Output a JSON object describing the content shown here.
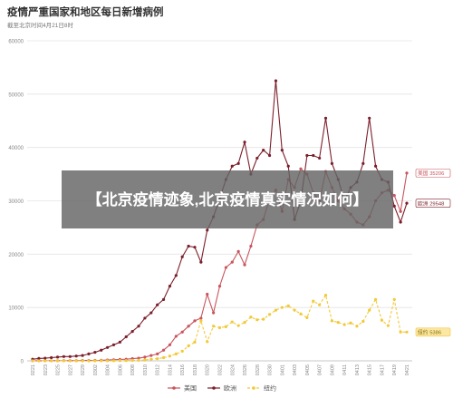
{
  "header": {
    "title": "疫情严重国家和地区每日新增病例",
    "subtitle": "截至北京时间4月21日8时"
  },
  "overlay_text": "【北京疫情迹象,北京疫情真实情况如何】",
  "colors": {
    "us": "#c9545d",
    "europe": "#7b1f2b",
    "newyork": "#f2c938",
    "grid": "#e4e4e4",
    "axis_text": "#888888"
  },
  "chart_data": {
    "type": "line",
    "title": "疫情严重国家和地区每日新增病例",
    "subtitle": "截至北京时间4月21日8时",
    "x": [
      "0221",
      "0222",
      "0223",
      "0224",
      "0225",
      "0226",
      "0227",
      "0228",
      "0229",
      "0301",
      "0302",
      "0303",
      "0304",
      "0305",
      "0306",
      "0307",
      "0308",
      "0309",
      "0310",
      "0311",
      "0312",
      "0313",
      "0314",
      "0315",
      "0316",
      "0317",
      "0318",
      "0319",
      "0320",
      "0321",
      "0322",
      "0323",
      "0324",
      "0325",
      "0326",
      "0327",
      "0328",
      "0329",
      "0330",
      "0331",
      "0401",
      "0402",
      "0403",
      "0404",
      "0405",
      "0406",
      "0407",
      "0408",
      "0409",
      "0410",
      "0411",
      "0412",
      "0413",
      "0414",
      "0415",
      "0416",
      "0417",
      "0418",
      "0419",
      "0420",
      "0421"
    ],
    "x_ticks": [
      "0221",
      "0223",
      "0225",
      "0227",
      "0229",
      "0302",
      "0304",
      "0306",
      "0308",
      "0310",
      "0312",
      "0314",
      "0316",
      "0318",
      "0320",
      "0322",
      "0324",
      "0326",
      "0328",
      "0330",
      "0401",
      "0403",
      "0405",
      "0407",
      "0409",
      "0411",
      "0413",
      "0415",
      "0417",
      "0419",
      "0421"
    ],
    "y_ticks": [
      0,
      10000,
      20000,
      30000,
      40000,
      50000,
      60000
    ],
    "ylim": [
      0,
      60000
    ],
    "grid": true,
    "legend_position": "bottom",
    "series": [
      {
        "name": "美国",
        "color": "#c9545d",
        "end_label": "美国 35206",
        "values": [
          20,
          20,
          20,
          30,
          30,
          40,
          40,
          50,
          60,
          70,
          80,
          100,
          150,
          200,
          250,
          300,
          400,
          500,
          700,
          1000,
          1300,
          2000,
          3000,
          4600,
          5400,
          6500,
          7500,
          8000,
          12500,
          9000,
          14000,
          17500,
          18500,
          20500,
          18000,
          21500,
          25500,
          26500,
          30500,
          32000,
          28000,
          34000,
          32500,
          36000,
          35000,
          31500,
          30000,
          35500,
          32500,
          30000,
          28500,
          27500,
          26000,
          25500,
          27000,
          30000,
          31500,
          32000,
          31000,
          28000,
          35206
        ],
        "dashed": false
      },
      {
        "name": "欧洲",
        "color": "#7b1f2b",
        "end_label": "欧洲 29548",
        "values": [
          300,
          450,
          500,
          600,
          700,
          800,
          800,
          900,
          1000,
          1300,
          1600,
          2000,
          2500,
          3000,
          3500,
          4500,
          5500,
          6500,
          8000,
          9000,
          10500,
          11500,
          14000,
          16000,
          19500,
          21500,
          21300,
          18500,
          24500,
          27000,
          30500,
          34000,
          36500,
          37000,
          41000,
          35000,
          38000,
          39500,
          38500,
          52500,
          39500,
          36500,
          26500,
          30000,
          38500,
          38500,
          38000,
          45500,
          37000,
          34000,
          30000,
          32500,
          33500,
          37000,
          45500,
          36500,
          34000,
          33500,
          29000,
          26000,
          29548
        ],
        "dashed": false
      },
      {
        "name": "纽约",
        "color": "#f2c938",
        "end_label": "纽约 5386",
        "values": [
          0,
          0,
          0,
          0,
          0,
          0,
          0,
          0,
          0,
          5,
          10,
          15,
          20,
          30,
          40,
          50,
          80,
          100,
          150,
          300,
          400,
          600,
          900,
          1300,
          1800,
          2800,
          3500,
          7500,
          3600,
          6500,
          6200,
          6400,
          7300,
          6600,
          7200,
          8200,
          7700,
          7800,
          8700,
          9500,
          10000,
          10300,
          9500,
          8800,
          8100,
          11200,
          10500,
          12300,
          7500,
          7200,
          6800,
          7100,
          6500,
          7400,
          9500,
          11500,
          7600,
          6600,
          11500,
          5400,
          5386
        ],
        "dashed": true
      }
    ]
  }
}
